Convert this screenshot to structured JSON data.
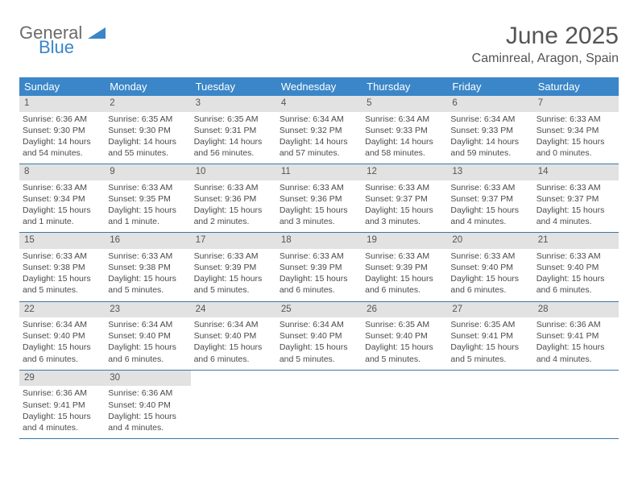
{
  "brand": {
    "word1": "General",
    "word2": "Blue"
  },
  "title": "June 2025",
  "location": "Caminreal, Aragon, Spain",
  "colors": {
    "header_bg": "#3a86c8",
    "daynum_bg": "#e2e2e2",
    "rule": "#3a78a8",
    "text": "#4a4a4a",
    "logo_gray": "#6b6b6b",
    "logo_blue": "#3a86c8"
  },
  "dow": [
    "Sunday",
    "Monday",
    "Tuesday",
    "Wednesday",
    "Thursday",
    "Friday",
    "Saturday"
  ],
  "weeks": [
    [
      {
        "n": "1",
        "sr": "Sunrise: 6:36 AM",
        "ss": "Sunset: 9:30 PM",
        "dl": "Daylight: 14 hours and 54 minutes."
      },
      {
        "n": "2",
        "sr": "Sunrise: 6:35 AM",
        "ss": "Sunset: 9:30 PM",
        "dl": "Daylight: 14 hours and 55 minutes."
      },
      {
        "n": "3",
        "sr": "Sunrise: 6:35 AM",
        "ss": "Sunset: 9:31 PM",
        "dl": "Daylight: 14 hours and 56 minutes."
      },
      {
        "n": "4",
        "sr": "Sunrise: 6:34 AM",
        "ss": "Sunset: 9:32 PM",
        "dl": "Daylight: 14 hours and 57 minutes."
      },
      {
        "n": "5",
        "sr": "Sunrise: 6:34 AM",
        "ss": "Sunset: 9:33 PM",
        "dl": "Daylight: 14 hours and 58 minutes."
      },
      {
        "n": "6",
        "sr": "Sunrise: 6:34 AM",
        "ss": "Sunset: 9:33 PM",
        "dl": "Daylight: 14 hours and 59 minutes."
      },
      {
        "n": "7",
        "sr": "Sunrise: 6:33 AM",
        "ss": "Sunset: 9:34 PM",
        "dl": "Daylight: 15 hours and 0 minutes."
      }
    ],
    [
      {
        "n": "8",
        "sr": "Sunrise: 6:33 AM",
        "ss": "Sunset: 9:34 PM",
        "dl": "Daylight: 15 hours and 1 minute."
      },
      {
        "n": "9",
        "sr": "Sunrise: 6:33 AM",
        "ss": "Sunset: 9:35 PM",
        "dl": "Daylight: 15 hours and 1 minute."
      },
      {
        "n": "10",
        "sr": "Sunrise: 6:33 AM",
        "ss": "Sunset: 9:36 PM",
        "dl": "Daylight: 15 hours and 2 minutes."
      },
      {
        "n": "11",
        "sr": "Sunrise: 6:33 AM",
        "ss": "Sunset: 9:36 PM",
        "dl": "Daylight: 15 hours and 3 minutes."
      },
      {
        "n": "12",
        "sr": "Sunrise: 6:33 AM",
        "ss": "Sunset: 9:37 PM",
        "dl": "Daylight: 15 hours and 3 minutes."
      },
      {
        "n": "13",
        "sr": "Sunrise: 6:33 AM",
        "ss": "Sunset: 9:37 PM",
        "dl": "Daylight: 15 hours and 4 minutes."
      },
      {
        "n": "14",
        "sr": "Sunrise: 6:33 AM",
        "ss": "Sunset: 9:37 PM",
        "dl": "Daylight: 15 hours and 4 minutes."
      }
    ],
    [
      {
        "n": "15",
        "sr": "Sunrise: 6:33 AM",
        "ss": "Sunset: 9:38 PM",
        "dl": "Daylight: 15 hours and 5 minutes."
      },
      {
        "n": "16",
        "sr": "Sunrise: 6:33 AM",
        "ss": "Sunset: 9:38 PM",
        "dl": "Daylight: 15 hours and 5 minutes."
      },
      {
        "n": "17",
        "sr": "Sunrise: 6:33 AM",
        "ss": "Sunset: 9:39 PM",
        "dl": "Daylight: 15 hours and 5 minutes."
      },
      {
        "n": "18",
        "sr": "Sunrise: 6:33 AM",
        "ss": "Sunset: 9:39 PM",
        "dl": "Daylight: 15 hours and 6 minutes."
      },
      {
        "n": "19",
        "sr": "Sunrise: 6:33 AM",
        "ss": "Sunset: 9:39 PM",
        "dl": "Daylight: 15 hours and 6 minutes."
      },
      {
        "n": "20",
        "sr": "Sunrise: 6:33 AM",
        "ss": "Sunset: 9:40 PM",
        "dl": "Daylight: 15 hours and 6 minutes."
      },
      {
        "n": "21",
        "sr": "Sunrise: 6:33 AM",
        "ss": "Sunset: 9:40 PM",
        "dl": "Daylight: 15 hours and 6 minutes."
      }
    ],
    [
      {
        "n": "22",
        "sr": "Sunrise: 6:34 AM",
        "ss": "Sunset: 9:40 PM",
        "dl": "Daylight: 15 hours and 6 minutes."
      },
      {
        "n": "23",
        "sr": "Sunrise: 6:34 AM",
        "ss": "Sunset: 9:40 PM",
        "dl": "Daylight: 15 hours and 6 minutes."
      },
      {
        "n": "24",
        "sr": "Sunrise: 6:34 AM",
        "ss": "Sunset: 9:40 PM",
        "dl": "Daylight: 15 hours and 6 minutes."
      },
      {
        "n": "25",
        "sr": "Sunrise: 6:34 AM",
        "ss": "Sunset: 9:40 PM",
        "dl": "Daylight: 15 hours and 5 minutes."
      },
      {
        "n": "26",
        "sr": "Sunrise: 6:35 AM",
        "ss": "Sunset: 9:40 PM",
        "dl": "Daylight: 15 hours and 5 minutes."
      },
      {
        "n": "27",
        "sr": "Sunrise: 6:35 AM",
        "ss": "Sunset: 9:41 PM",
        "dl": "Daylight: 15 hours and 5 minutes."
      },
      {
        "n": "28",
        "sr": "Sunrise: 6:36 AM",
        "ss": "Sunset: 9:41 PM",
        "dl": "Daylight: 15 hours and 4 minutes."
      }
    ],
    [
      {
        "n": "29",
        "sr": "Sunrise: 6:36 AM",
        "ss": "Sunset: 9:41 PM",
        "dl": "Daylight: 15 hours and 4 minutes."
      },
      {
        "n": "30",
        "sr": "Sunrise: 6:36 AM",
        "ss": "Sunset: 9:40 PM",
        "dl": "Daylight: 15 hours and 4 minutes."
      },
      {
        "n": "",
        "sr": "",
        "ss": "",
        "dl": ""
      },
      {
        "n": "",
        "sr": "",
        "ss": "",
        "dl": ""
      },
      {
        "n": "",
        "sr": "",
        "ss": "",
        "dl": ""
      },
      {
        "n": "",
        "sr": "",
        "ss": "",
        "dl": ""
      },
      {
        "n": "",
        "sr": "",
        "ss": "",
        "dl": ""
      }
    ]
  ]
}
